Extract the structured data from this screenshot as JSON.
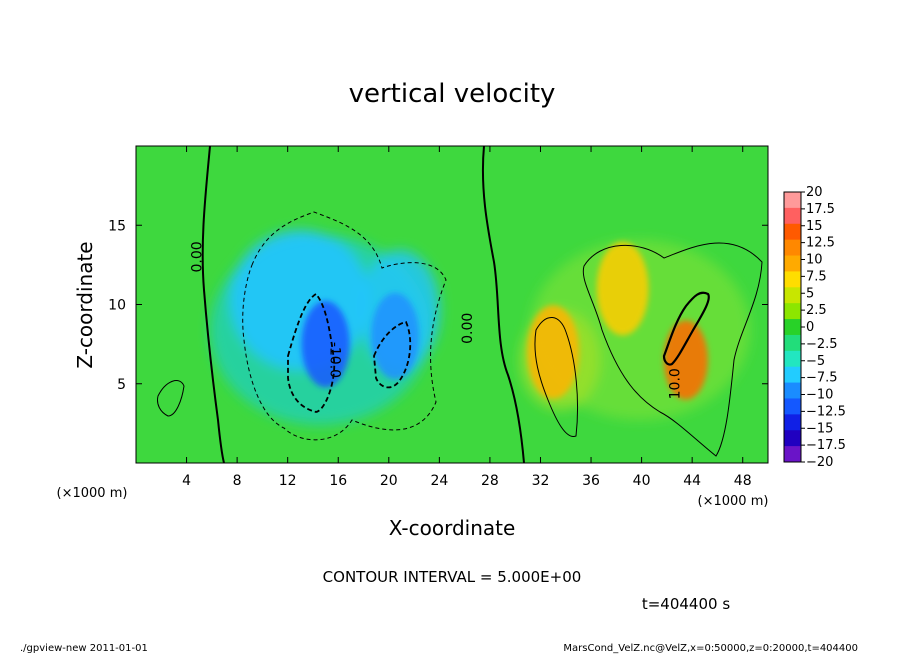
{
  "chart_data": {
    "type": "heatmap",
    "title": "vertical velocity",
    "xlabel": "X-coordinate",
    "ylabel": "Z-coordinate",
    "x_unit": "(×1000 m)",
    "y_unit": "(×1000 m)",
    "xlim": [
      0,
      50
    ],
    "ylim": [
      0,
      20
    ],
    "x_ticks": [
      4,
      8,
      12,
      16,
      20,
      24,
      28,
      32,
      36,
      40,
      44,
      48
    ],
    "y_ticks": [
      5,
      10,
      15
    ],
    "colorbar": {
      "labels": [
        "20",
        "17.5",
        "15",
        "12.5",
        "10",
        "7.5",
        "5",
        "2.5",
        "0",
        "−2.5",
        "−5",
        "−7.5",
        "−10",
        "−12.5",
        "−15",
        "−17.5",
        "−20"
      ],
      "colors": [
        "#ff9a9a",
        "#ff6060",
        "#ff5a00",
        "#ff8800",
        "#ffaa00",
        "#ffdd00",
        "#c8e600",
        "#8ce600",
        "#28d228",
        "#22dd7a",
        "#22e6c0",
        "#22ccff",
        "#1a8cff",
        "#1458ff",
        "#1020e6",
        "#2000c0",
        "#6a14c8"
      ]
    },
    "contour_interval_text": "CONTOUR INTERVAL = 5.000E+00",
    "contour_labels": [
      "0.00",
      "0.00",
      "-10.0",
      "10.0"
    ],
    "time_text": "t=404400  s",
    "features": [
      {
        "kind": "updraft",
        "x": 43.5,
        "z": 6.5,
        "value": 15,
        "color": "#ff6a00"
      },
      {
        "kind": "updraft",
        "x": 38.5,
        "z": 11,
        "value": 7.5,
        "color": "#ffcc00"
      },
      {
        "kind": "updraft",
        "x": 33,
        "z": 7,
        "value": 7.5,
        "color": "#ffb400"
      },
      {
        "kind": "downdraft",
        "x": 15,
        "z": 7.5,
        "value": -12.5,
        "color": "#1858ff"
      },
      {
        "kind": "downdraft",
        "x": 20.5,
        "z": 8,
        "value": -10,
        "color": "#1c90ff"
      }
    ]
  },
  "footer": {
    "left": "./gpview-new   2011-01-01",
    "right": "MarsCond_VelZ.nc@VelZ,x=0:50000,z=0:20000,t=404400"
  }
}
